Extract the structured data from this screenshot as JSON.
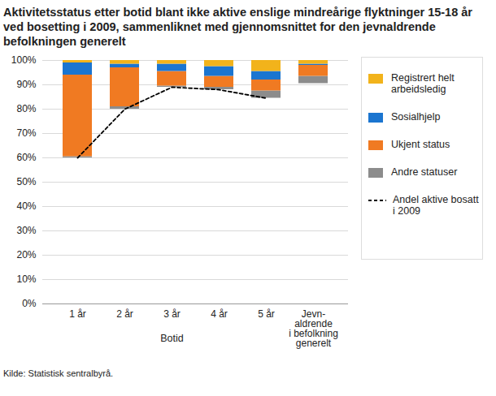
{
  "chart_data": {
    "type": "bar",
    "stacked": true,
    "title": "Aktivitetsstatus etter botid blant ikke aktive enslige mindreårige flyktninger 15-18 år ved bosetting i 2009, sammenliknet med gjennomsnittet for den jevnaldrende befolkningen generelt",
    "xlabel": "Botid",
    "source": "Kilde: Statistisk sentralbyrå.",
    "categories": [
      "1 år",
      "2 år",
      "3 år",
      "4 år",
      "5 år",
      "Jevn-\naldrende\ni befolkning\ngenerelt"
    ],
    "base": [
      60,
      80,
      89,
      88,
      84.5,
      90.5
    ],
    "series": [
      {
        "name": "Andre statuser",
        "color": "#8c8c8c",
        "values": [
          0.5,
          1,
          0.5,
          1,
          3,
          3
        ]
      },
      {
        "name": "Ukjent status",
        "color": "#f07a22",
        "values": [
          33.5,
          16,
          6,
          4.5,
          4.5,
          4.5
        ]
      },
      {
        "name": "Sosialhjelp",
        "color": "#1b75d0",
        "values": [
          5,
          1.5,
          3,
          4,
          3.5,
          0.5
        ]
      },
      {
        "name": "Registrert helt arbeidsledig",
        "color": "#f2b31b",
        "values": [
          1,
          1.5,
          1.5,
          2.5,
          4.5,
          1.5
        ]
      },
      {
        "name": "Andel aktive bosatt i 2009",
        "type": "line",
        "line_style": "dashed",
        "color": "#000000",
        "values": [
          60,
          80,
          89,
          88,
          84.5,
          null
        ]
      }
    ],
    "ylim": [
      0,
      100
    ],
    "yticks": [
      {
        "value": 0,
        "label": "0%"
      },
      {
        "value": 10,
        "label": "10%"
      },
      {
        "value": 20,
        "label": "20%"
      },
      {
        "value": 30,
        "label": "30%"
      },
      {
        "value": 40,
        "label": "40%"
      },
      {
        "value": 50,
        "label": "50%"
      },
      {
        "value": 60,
        "label": "60%"
      },
      {
        "value": 70,
        "label": "70%"
      },
      {
        "value": 80,
        "label": "80%"
      },
      {
        "value": 90,
        "label": "90%"
      },
      {
        "value": 100,
        "label": "100%"
      }
    ],
    "grid": true,
    "legend": "right"
  }
}
